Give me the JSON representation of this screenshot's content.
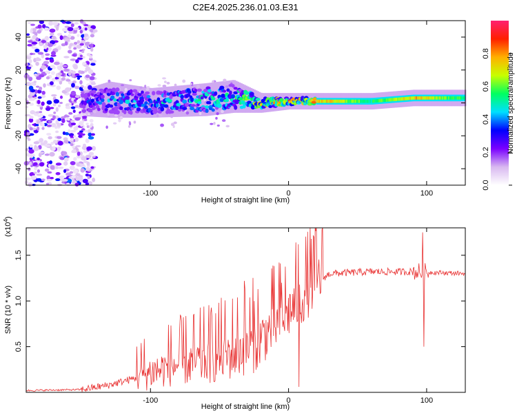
{
  "title": "C2E4.2025.236.01.03.E31",
  "chart_data": [
    {
      "type": "heatmap",
      "name": "spectrogram",
      "xlabel": "Height of straight line (km)",
      "ylabel": "Frequency (Hz)",
      "xlim": [
        -190,
        128
      ],
      "ylim": [
        -50,
        50
      ],
      "x_ticks": [
        -100,
        0,
        100
      ],
      "y_ticks": [
        -40,
        -20,
        0,
        20,
        40
      ],
      "colorbar": {
        "label": "Normalized spectral amplitude",
        "range": [
          0.0,
          1.0
        ],
        "ticks": [
          0.0,
          0.2,
          0.4,
          0.6,
          0.8
        ],
        "tick_labels": [
          "0.0",
          "0.2",
          "0.4",
          "0.6",
          "0.8"
        ],
        "colors": [
          "#ffffff",
          "#d8b8f0",
          "#7a00ff",
          "#0000ff",
          "#00e0ff",
          "#00ff60",
          "#c8ff00",
          "#ffb000",
          "#ff2000",
          "#ff2070"
        ]
      },
      "band": [
        {
          "x": -150,
          "center": 0,
          "half_width": 5,
          "amp": 0.3
        },
        {
          "x": -130,
          "center": 2,
          "half_width": 8,
          "amp": 0.4
        },
        {
          "x": -100,
          "center": 0,
          "half_width": 6,
          "amp": 0.45
        },
        {
          "x": -60,
          "center": 2,
          "half_width": 7,
          "amp": 0.5
        },
        {
          "x": -40,
          "center": 4,
          "half_width": 7,
          "amp": 0.5
        },
        {
          "x": -20,
          "center": 0,
          "half_width": 3,
          "amp": 0.7
        },
        {
          "x": 0,
          "center": 1,
          "half_width": 2,
          "amp": 0.8
        },
        {
          "x": 30,
          "center": 1,
          "half_width": 2,
          "amp": 0.75
        },
        {
          "x": 60,
          "center": 1,
          "half_width": 2,
          "amp": 0.55
        },
        {
          "x": 90,
          "center": 3,
          "half_width": 2,
          "amp": 0.8
        },
        {
          "x": 128,
          "center": 3,
          "half_width": 2,
          "amp": 0.55
        }
      ]
    },
    {
      "type": "line",
      "name": "snr",
      "xlabel": "Height of straight line (km)",
      "ylabel": "SNR (10 * v/v)",
      "y_scale_label": "(x10",
      "y_scale_exponent": "4",
      "y_scale_suffix": ")",
      "xlim": [
        -190,
        128
      ],
      "ylim": [
        0,
        1.8
      ],
      "x_ticks": [
        -100,
        0,
        100
      ],
      "y_ticks": [
        0.5,
        1.0,
        1.5
      ],
      "y_tick_labels": [
        "0.5",
        "1.0",
        "1.5"
      ],
      "color": "#e83030",
      "baseline": [
        {
          "x": -190,
          "y": 0.02
        },
        {
          "x": -150,
          "y": 0.03
        },
        {
          "x": -130,
          "y": 0.08
        },
        {
          "x": -100,
          "y": 0.2
        },
        {
          "x": -80,
          "y": 0.28
        },
        {
          "x": -60,
          "y": 0.32
        },
        {
          "x": -40,
          "y": 0.4
        },
        {
          "x": -25,
          "y": 0.5
        },
        {
          "x": -10,
          "y": 0.7
        },
        {
          "x": 0,
          "y": 0.85
        },
        {
          "x": 10,
          "y": 1.0
        },
        {
          "x": 20,
          "y": 1.2
        },
        {
          "x": 30,
          "y": 1.3
        },
        {
          "x": 60,
          "y": 1.32
        },
        {
          "x": 90,
          "y": 1.32
        },
        {
          "x": 128,
          "y": 1.3
        }
      ],
      "spikes": [
        {
          "x": 7,
          "y": 1.62
        },
        {
          "x": 7.5,
          "y": 0.06
        },
        {
          "x": 97,
          "y": 1.75
        },
        {
          "x": 98,
          "y": 0.5
        },
        {
          "x": -32,
          "y": 1.22
        },
        {
          "x": -25,
          "y": 1.0
        },
        {
          "x": -5,
          "y": 1.2
        }
      ]
    }
  ]
}
